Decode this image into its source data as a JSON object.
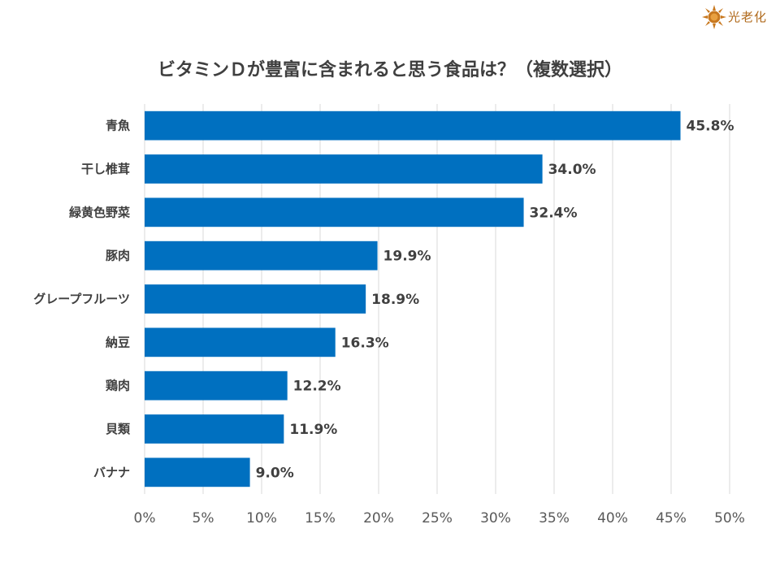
{
  "logo": {
    "text": "光老化",
    "subtext": "",
    "icon": "sun-icon",
    "color": "#c8781e"
  },
  "chart_data": {
    "type": "bar",
    "orientation": "horizontal",
    "title": "ビタミンＤが豊富に含まれると思う食品は？（複数選択）",
    "categories": [
      "青魚",
      "干し椎茸",
      "緑黄色野菜",
      "豚肉",
      "グレープフルーツ",
      "納豆",
      "鶏肉",
      "貝類",
      "バナナ"
    ],
    "values": [
      45.8,
      34.0,
      32.4,
      19.9,
      18.9,
      16.3,
      12.2,
      11.9,
      9.0
    ],
    "value_labels": [
      "45.8%",
      "34.0%",
      "32.4%",
      "19.9%",
      "18.9%",
      "16.3%",
      "12.2%",
      "11.9%",
      "9.0%"
    ],
    "xlim": [
      0,
      50
    ],
    "xticks": [
      0,
      5,
      10,
      15,
      20,
      25,
      30,
      35,
      40,
      45,
      50
    ],
    "xtick_labels": [
      "0%",
      "5%",
      "10%",
      "15%",
      "20%",
      "25%",
      "30%",
      "35%",
      "40%",
      "45%",
      "50%"
    ],
    "xlabel": "",
    "ylabel": "",
    "grid": "vertical",
    "legend": "none",
    "bar_color": "#0070c0",
    "grid_color": "#d9d9d9"
  }
}
